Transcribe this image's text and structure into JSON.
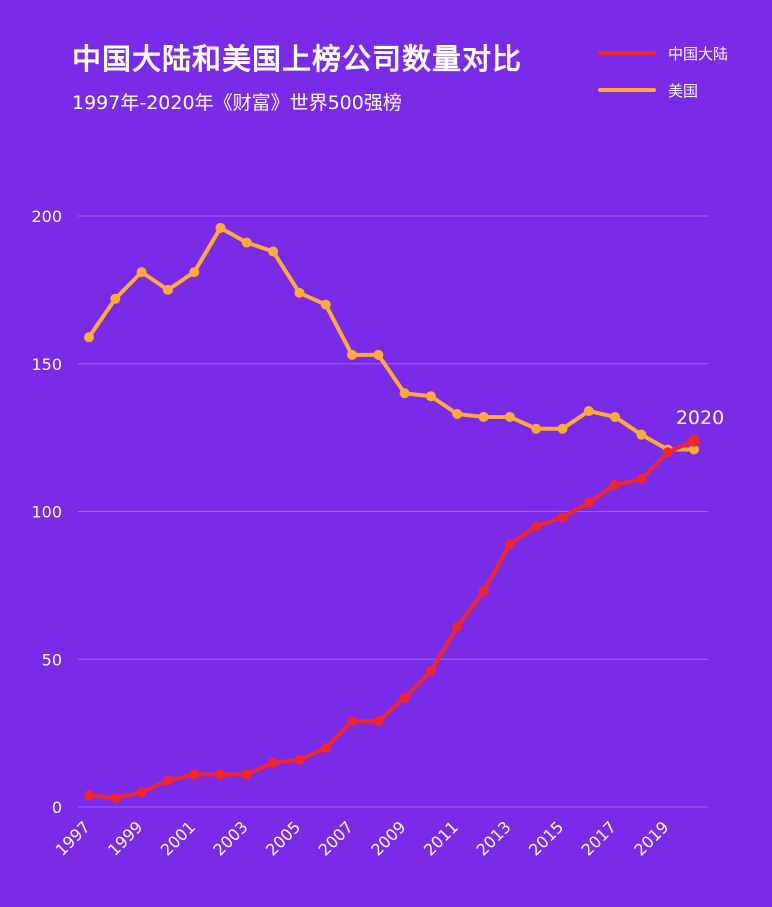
{
  "title": "中国大陆和美国上榜公司数量对比",
  "subtitle": "1997年-2020年《财富》世界500强榜",
  "chart_data": {
    "type": "line",
    "x": [
      1997,
      1998,
      1999,
      2000,
      2001,
      2002,
      2003,
      2004,
      2005,
      2006,
      2007,
      2008,
      2009,
      2010,
      2011,
      2012,
      2013,
      2014,
      2015,
      2016,
      2017,
      2018,
      2019,
      2020
    ],
    "x_tick_labels": [
      "1997",
      "1999",
      "2001",
      "2003",
      "2005",
      "2007",
      "2009",
      "2011",
      "2013",
      "2015",
      "2017",
      "2019"
    ],
    "y_ticks": [
      0,
      50,
      100,
      150,
      200
    ],
    "ylim": [
      0,
      200
    ],
    "grid": true,
    "legend_position": "top-right",
    "annotation": "2020",
    "series": [
      {
        "name": "中国大陆",
        "color": "#f0262e",
        "values": [
          4,
          3,
          5,
          9,
          11,
          11,
          11,
          15,
          16,
          20,
          29,
          29,
          37,
          46,
          61,
          73,
          89,
          95,
          98,
          103,
          109,
          111,
          120,
          124
        ]
      },
      {
        "name": "美国",
        "color": "#fdaa3d",
        "values": [
          159,
          172,
          181,
          175,
          181,
          196,
          191,
          188,
          174,
          170,
          153,
          153,
          140,
          139,
          133,
          132,
          132,
          128,
          128,
          134,
          132,
          126,
          121,
          121
        ]
      }
    ]
  }
}
